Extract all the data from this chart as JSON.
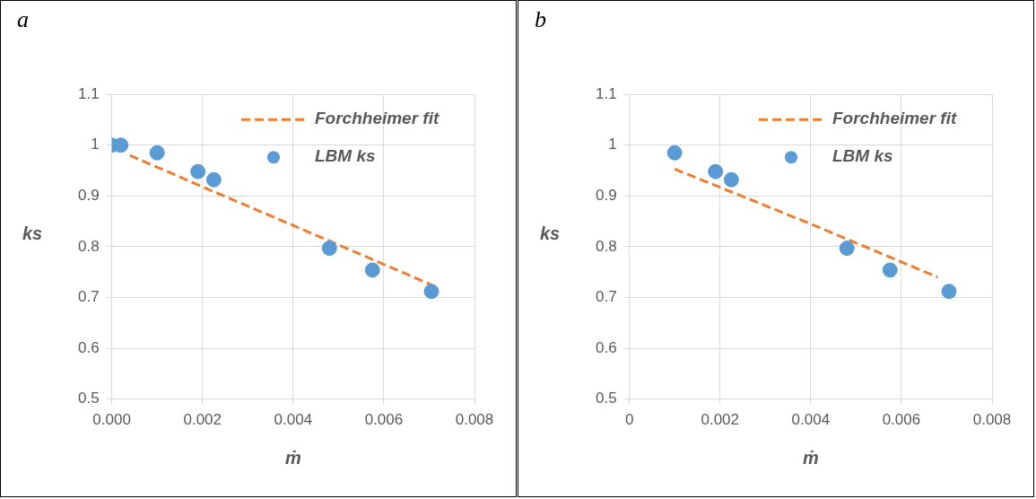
{
  "chart_data": [
    {
      "type": "scatter",
      "title": "a",
      "xlabel": "ṁ",
      "ylabel": "ks",
      "xlim": [
        0,
        0.008
      ],
      "xticks": [
        {
          "value": 0,
          "label": "0.000"
        },
        {
          "value": 0.002,
          "label": "0.002"
        },
        {
          "value": 0.004,
          "label": "0.004"
        },
        {
          "value": 0.006,
          "label": "0.006"
        },
        {
          "value": 0.008,
          "label": "0.008"
        }
      ],
      "ylim": [
        0.5,
        1.1
      ],
      "yticks": [
        0.5,
        0.6,
        0.7,
        0.8,
        0.9,
        1,
        1.1
      ],
      "grid": true,
      "legend": "top right",
      "series": [
        {
          "name": "Forchheimer fit",
          "type": "line",
          "line_style": "dashed",
          "marker": "none",
          "color": "#ed7d31",
          "x": [
            0.0004,
            0.002,
            0.004,
            0.00705
          ],
          "values": [
            0.98,
            0.918,
            0.842,
            0.725
          ]
        },
        {
          "name": "LBM ks",
          "marker": "circle",
          "color": "#5b9bd5",
          "x": [
            0,
            0.0002,
            0.001,
            0.0019,
            0.00225,
            0.0048,
            0.00575,
            0.00705
          ],
          "values": [
            1.0,
            1.0,
            0.985,
            0.948,
            0.932,
            0.797,
            0.754,
            0.712
          ]
        }
      ]
    },
    {
      "type": "scatter",
      "title": "b",
      "xlabel": "ṁ",
      "ylabel": "ks",
      "xlim": [
        0,
        0.008
      ],
      "xticks": [
        0,
        0.002,
        0.004,
        0.006,
        0.008
      ],
      "ylim": [
        0.5,
        1.1
      ],
      "yticks": [
        0.5,
        0.6,
        0.7,
        0.8,
        0.9,
        1,
        1.1
      ],
      "grid": true,
      "legend": "top right",
      "series": [
        {
          "name": "Forchheimer fit",
          "type": "line",
          "line_style": "dashed",
          "marker": "none",
          "color": "#ed7d31",
          "x": [
            0.001,
            0.002,
            0.004,
            0.0068
          ],
          "values": [
            0.953,
            0.917,
            0.845,
            0.74
          ]
        },
        {
          "name": "LBM ks",
          "marker": "circle",
          "color": "#5b9bd5",
          "x": [
            0.001,
            0.0019,
            0.00225,
            0.0048,
            0.00575,
            0.00705
          ],
          "values": [
            0.985,
            0.948,
            0.932,
            0.797,
            0.754,
            0.712
          ]
        }
      ]
    }
  ]
}
